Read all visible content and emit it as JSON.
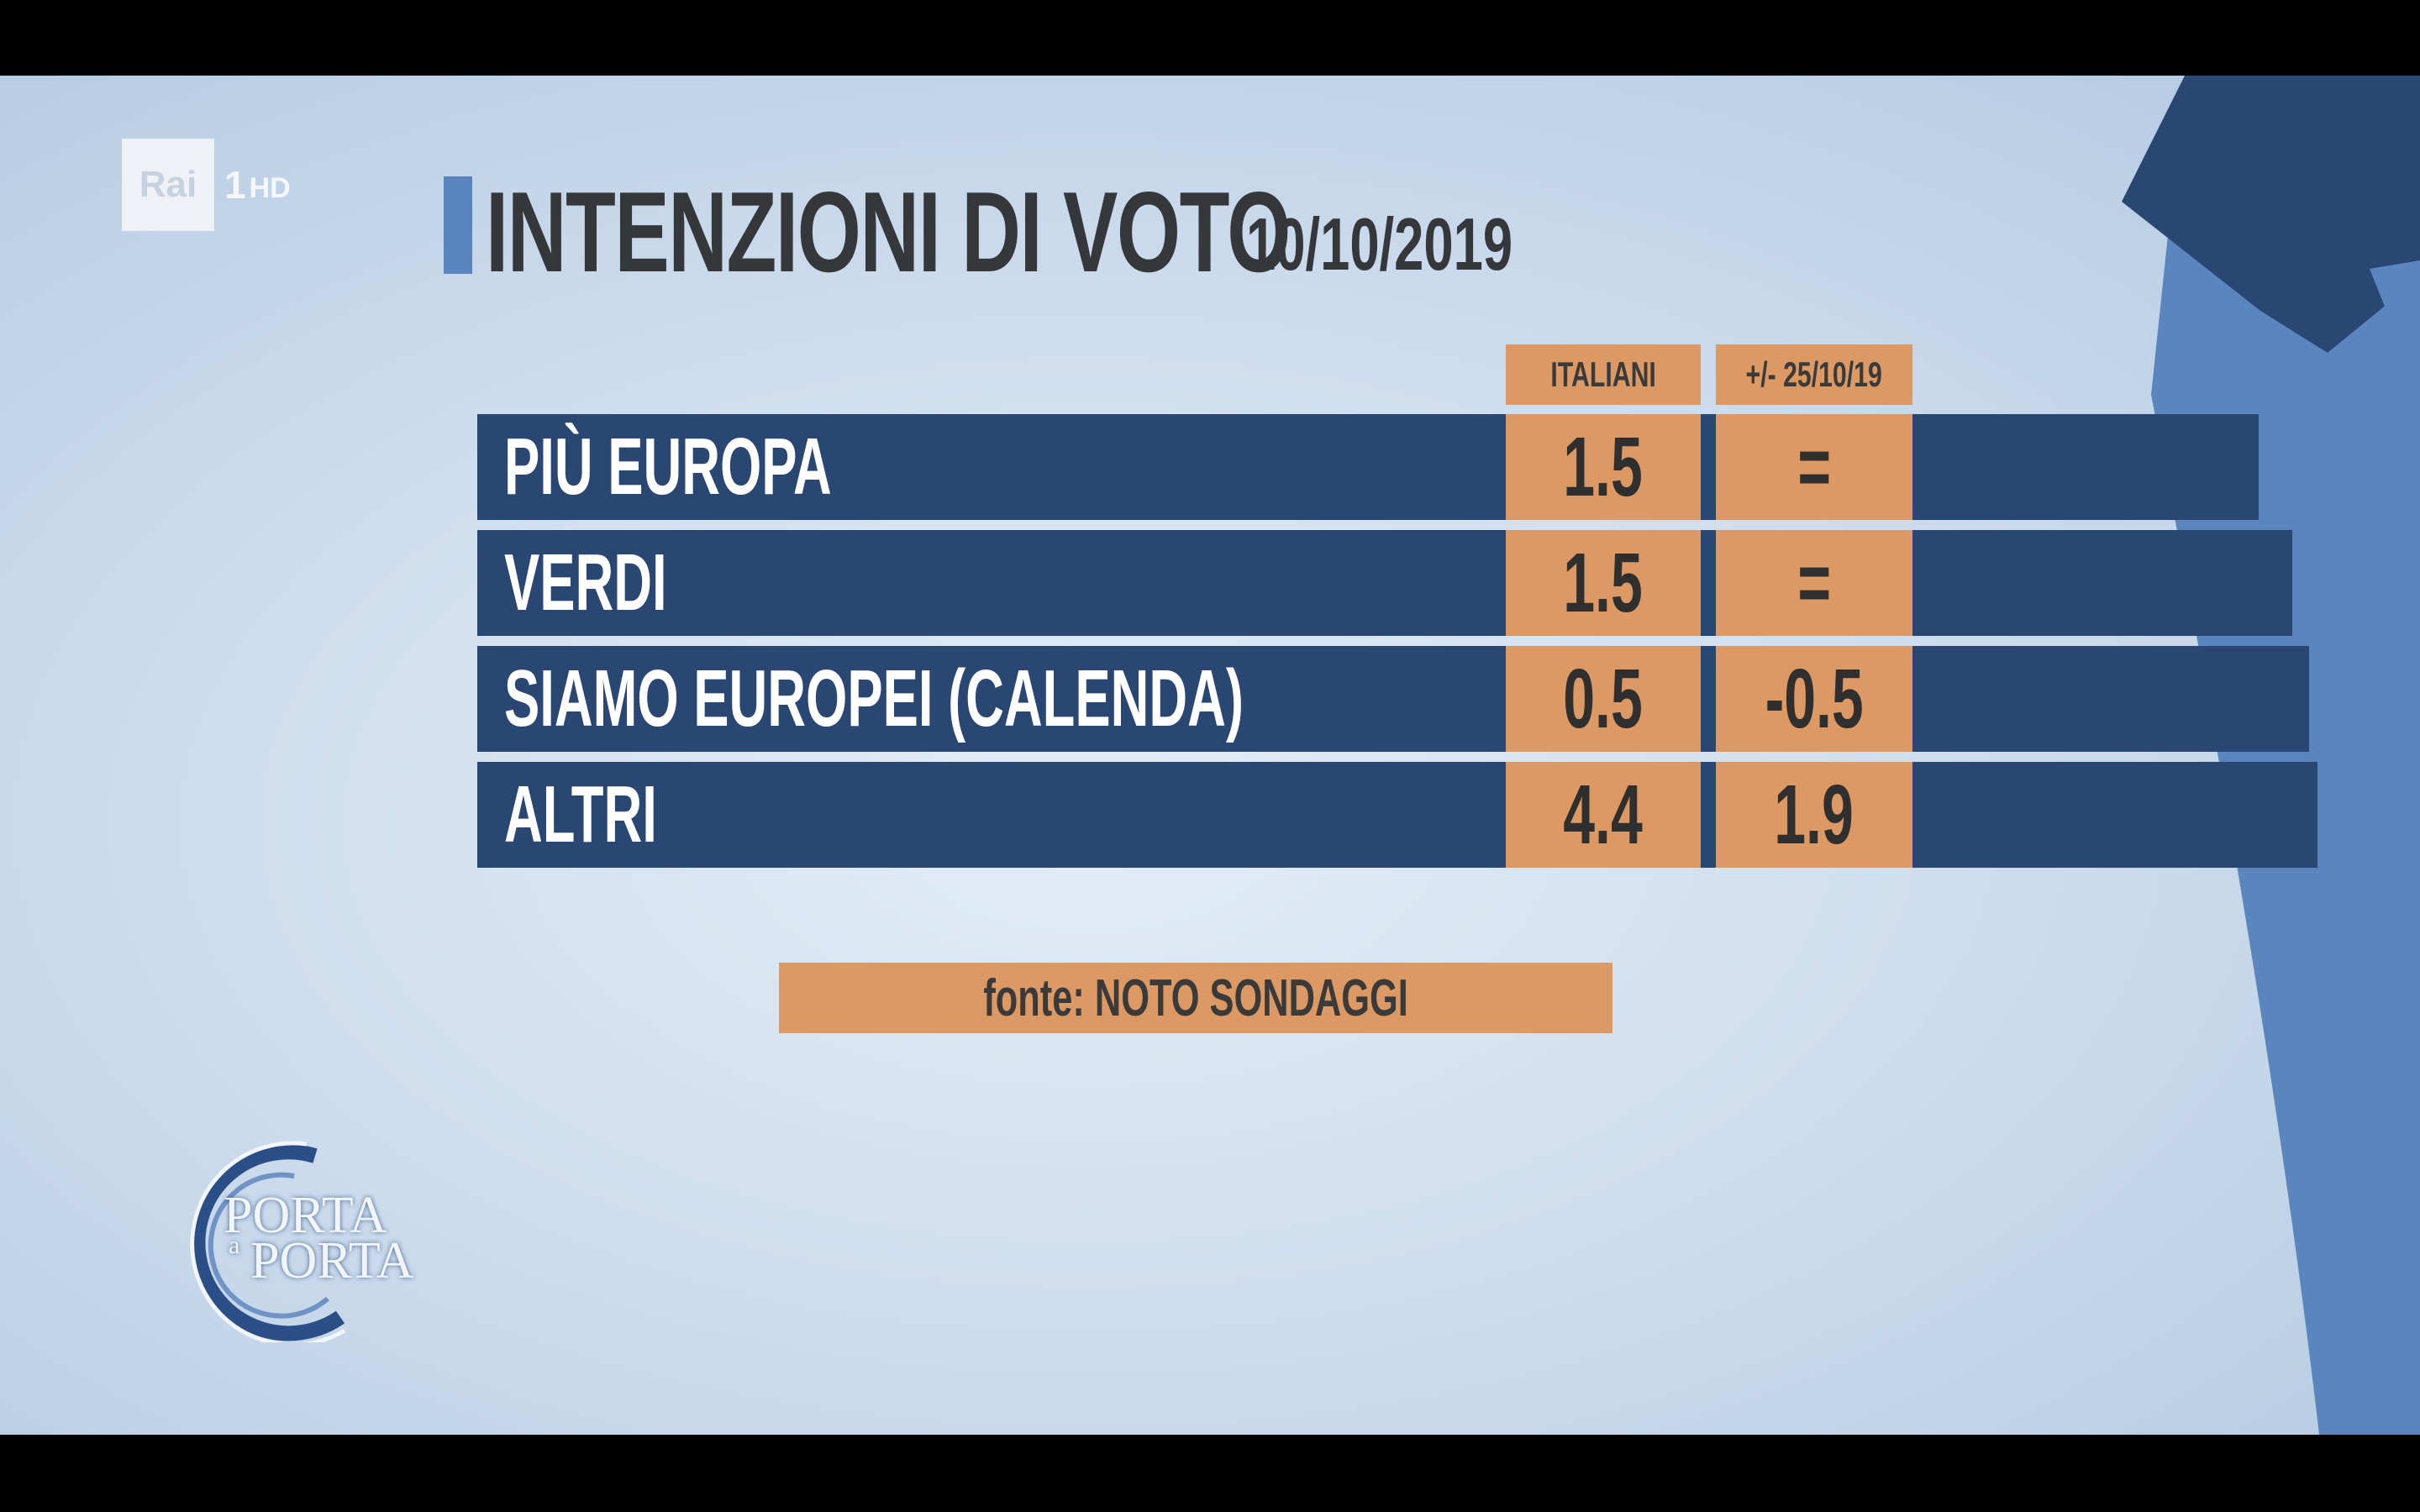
{
  "channel": {
    "brand": "Rai",
    "number": "1",
    "suffix": "HD"
  },
  "title": "INTENZIONI DI VOTO",
  "date": "10/10/2019",
  "table": {
    "columns": [
      "ITALIANI",
      "+/- 25/10/19"
    ],
    "rows": [
      {
        "label": "PIÙ EUROPA",
        "italiani": "1.5",
        "change": "="
      },
      {
        "label": "VERDI",
        "italiani": "1.5",
        "change": "="
      },
      {
        "label": "SIAMO EUROPEI  (CALENDA)",
        "italiani": "0.5",
        "change": "-0.5"
      },
      {
        "label": "ALTRI",
        "italiani": "4.4",
        "change": "1.9"
      }
    ]
  },
  "source": "fonte: NOTO SONDAGGI",
  "show_logo": {
    "line1": "PORTA",
    "connector": "a",
    "line2": "PORTA"
  },
  "colors": {
    "navy": "#2a4673",
    "orange": "#dd9963",
    "background": "#cfdeee",
    "accent_blue": "#5b86bd"
  }
}
